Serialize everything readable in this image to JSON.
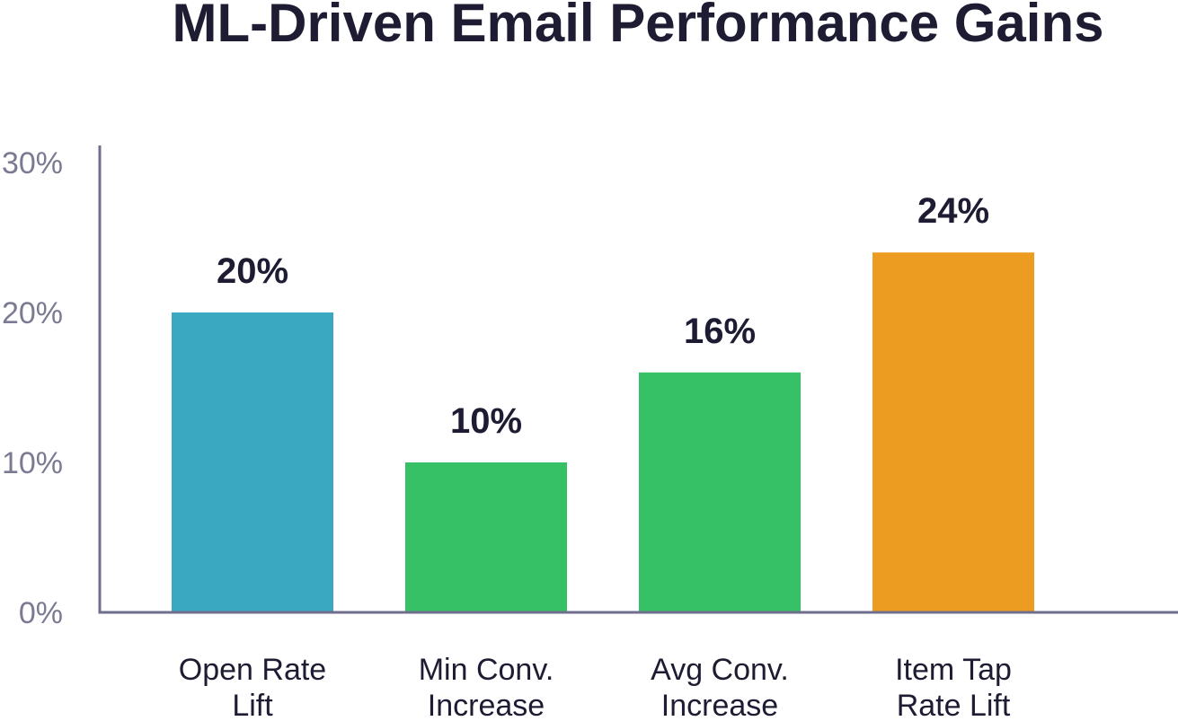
{
  "chart_data": {
    "type": "bar",
    "title": "ML-Driven Email Performance Gains",
    "xlabel": "",
    "ylabel": "",
    "categories": [
      [
        "Open Rate",
        "Lift"
      ],
      [
        "Min Conv.",
        "Increase"
      ],
      [
        "Avg Conv.",
        "Increase"
      ],
      [
        "Item Tap",
        "Rate Lift"
      ]
    ],
    "values": [
      20,
      10,
      16,
      24
    ],
    "value_labels": [
      "20%",
      "10%",
      "16%",
      "24%"
    ],
    "bar_colors": [
      "#3aa8c1",
      "#36c166",
      "#36c166",
      "#eb9c21"
    ],
    "ylim": [
      0,
      30
    ],
    "y_ticks": [
      0,
      10,
      20,
      30
    ],
    "y_tick_labels": [
      "0%",
      "10%",
      "20%",
      "30%"
    ],
    "grid": false,
    "legend": "none"
  },
  "colors": {
    "axis": "#6f6e8c",
    "text_dark": "#1d1c33",
    "tick_text": "#7a7a92"
  }
}
